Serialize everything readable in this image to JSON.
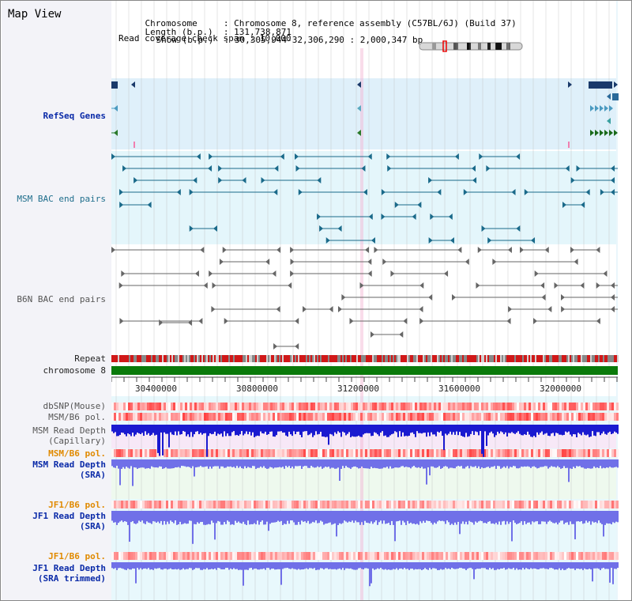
{
  "view_title": "Map View",
  "info": {
    "line1_key": "Chromosome",
    "line1_val": "Chromosome 8, reference assembly (C57BL/6J) (Build 37)",
    "line2_key": "Length (b.p.)",
    "line2_val": "131,738,871",
    "line3_key": "Show (b.p.)",
    "line3_val": "30,305,944-32,306,290 : 2,000,347 bp",
    "line4": "Read coverage check span : 10,000"
  },
  "tracks": {
    "refseq": "RefSeq Genes",
    "msm_bac": "MSM BAC end pairs",
    "b6n_bac": "B6N BAC end pairs",
    "repeat": "Repeat",
    "chromosome": "chromosome 8",
    "dbsnp": "dbSNP(Mouse)",
    "msm_b6_pol_1": "MSM/B6 pol.",
    "msm_depth_cap_1": "MSM Read Depth",
    "msm_depth_cap_2": "(Capillary)",
    "msm_b6_pol_2": "MSM/B6 pol.",
    "msm_depth_sra_1": "MSM Read Depth",
    "msm_depth_sra_2": "(SRA)",
    "jf1_b6_pol_1": "JF1/B6 pol.",
    "jf1_depth_sra_1": "JF1 Read Depth",
    "jf1_depth_sra_2": "(SRA)",
    "jf1_b6_pol_2": "JF1/B6 pol.",
    "jf1_depth_trim_1": "JF1 Read Depth",
    "jf1_depth_trim_2": "(SRA trimmed)"
  },
  "ruler": {
    "ticks": [
      "30400000",
      "30800000",
      "31200000",
      "31600000",
      "32000000"
    ]
  },
  "colors": {
    "refseq_bg": "#dff0fa",
    "msm_bac_bg": "#e4f6fb",
    "depth_bg": "#e8f8fc",
    "chromosome_bar": "#0a7a0a",
    "msm_depth_color": "#1a1ad0",
    "sra_depth_color": "#7070e8",
    "snp_red": "#e04040",
    "orange_label": "#e08a00",
    "blue_label": "#0a2aa8"
  }
}
